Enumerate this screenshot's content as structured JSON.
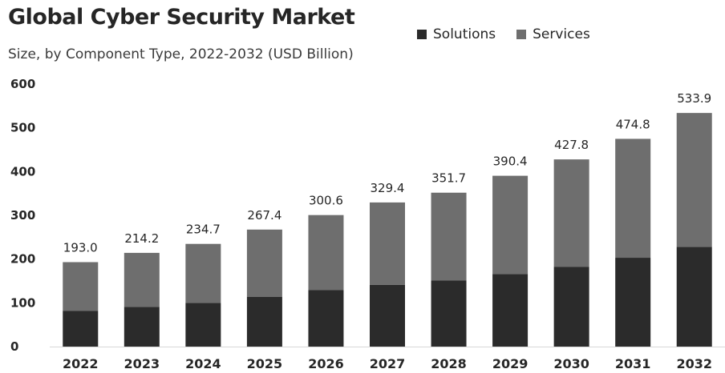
{
  "chart_data": {
    "type": "bar",
    "stacked": true,
    "title": "Global Cyber Security Market",
    "subtitle": "Size, by Component Type, 2022-2032 (USD Billion)",
    "xlabel": "",
    "ylabel": "",
    "ylim": [
      0,
      600
    ],
    "yticks": [
      0,
      100,
      200,
      300,
      400,
      500,
      600
    ],
    "grid": false,
    "legend_position": "top-right",
    "categories": [
      "2022",
      "2023",
      "2024",
      "2025",
      "2026",
      "2027",
      "2028",
      "2029",
      "2030",
      "2031",
      "2032"
    ],
    "series": [
      {
        "name": "Solutions",
        "color": "#2b2b2b",
        "values": [
          82,
          91,
          100,
          114,
          129,
          141,
          151,
          166,
          182,
          203,
          228
        ]
      },
      {
        "name": "Services",
        "color": "#6e6e6e",
        "values": [
          111.0,
          123.2,
          134.7,
          153.4,
          171.6,
          188.4,
          200.7,
          224.4,
          245.8,
          271.8,
          305.9
        ]
      }
    ],
    "totals": [
      193.0,
      214.2,
      234.7,
      267.4,
      300.6,
      329.4,
      351.7,
      390.4,
      427.8,
      474.8,
      533.9
    ],
    "total_labels": [
      "193.0",
      "214.2",
      "234.7",
      "267.4",
      "300.6",
      "329.4",
      "351.7",
      "390.4",
      "427.8",
      "474.8",
      "533.9"
    ]
  }
}
